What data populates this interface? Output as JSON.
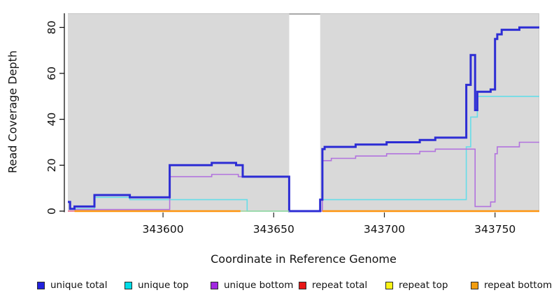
{
  "chart_data": {
    "type": "line",
    "subtype": "step-after-coverage-plot",
    "title": "",
    "xlabel": "Coordinate in Reference Genome",
    "ylabel": "Read Coverage Depth",
    "xlim": [
      343557,
      343770
    ],
    "ylim": [
      0,
      86
    ],
    "xticks": [
      343600,
      343650,
      343700,
      343750
    ],
    "yticks": [
      0,
      20,
      40,
      60,
      80
    ],
    "grid": "off",
    "legend_position": "bottom",
    "plot_bg": "#d9d9d9",
    "axis_color": "#000000",
    "gap": {
      "x_start": 343657,
      "x_end": 343671,
      "fill": "#ffffff",
      "top_line_color": "#8c8c8c",
      "meaning_visible": "white vertical band with zero coverage"
    },
    "series": [
      {
        "name": "unique top",
        "color": "#66dde8",
        "width": 1.6,
        "segments": [
          {
            "points": [
              [
                343560,
                1
              ],
              [
                343569,
                6
              ],
              [
                343585,
                5
              ],
              [
                343638,
                0
              ],
              [
                343671,
                5
              ],
              [
                343737,
                28
              ],
              [
                343739,
                41
              ],
              [
                343742,
                50
              ]
            ],
            "end": 343770
          }
        ]
      },
      {
        "name": "unique bottom",
        "color": "#b273de",
        "width": 1.6,
        "segments": [
          {
            "points": [
              [
                343560,
                0.7
              ],
              [
                343603,
                15
              ],
              [
                343622,
                16
              ],
              [
                343634,
                15
              ],
              [
                343657,
                0
              ],
              [
                343672,
                22
              ],
              [
                343676,
                23
              ],
              [
                343687,
                24
              ],
              [
                343701,
                25
              ],
              [
                343716,
                26
              ],
              [
                343723,
                27
              ],
              [
                343741,
                2
              ],
              [
                343748,
                4
              ],
              [
                343750,
                25
              ],
              [
                343751,
                28
              ],
              [
                343761,
                30
              ]
            ],
            "end": 343770
          }
        ]
      },
      {
        "name": "unique total",
        "color": "#2d2dd4",
        "width": 3,
        "segments": [
          {
            "points": [
              [
                343557,
                4
              ],
              [
                343558,
                1
              ],
              [
                343560,
                2
              ],
              [
                343569,
                7
              ],
              [
                343585,
                6
              ],
              [
                343603,
                20
              ],
              [
                343622,
                21
              ],
              [
                343633,
                20
              ],
              [
                343636,
                15
              ],
              [
                343657,
                0
              ],
              [
                343671,
                5
              ],
              [
                343672,
                27
              ],
              [
                343673,
                28
              ],
              [
                343687,
                29
              ],
              [
                343701,
                30
              ],
              [
                343716,
                31
              ],
              [
                343723,
                32
              ],
              [
                343737,
                55
              ],
              [
                343739,
                68
              ],
              [
                343741,
                44
              ],
              [
                343742,
                52
              ],
              [
                343748,
                53
              ],
              [
                343750,
                75
              ],
              [
                343751,
                77
              ],
              [
                343753,
                79
              ],
              [
                343761,
                80
              ]
            ],
            "end": 343770
          }
        ]
      },
      {
        "name": "repeat total",
        "color": "#f4728f",
        "width": 1.6,
        "segments": [
          {
            "points": [
              [
                343557,
                0
              ]
            ],
            "end": 343560
          }
        ]
      },
      {
        "name": "repeat top",
        "color": "#9cd99c",
        "width": 1.6,
        "segments": [
          {
            "points": [
              [
                343635,
                0
              ]
            ],
            "end": 343657
          }
        ]
      },
      {
        "name": "repeat bottom",
        "color": "#ff950f",
        "width": 2.6,
        "segments": [
          {
            "points": [
              [
                343560,
                0
              ]
            ],
            "end": 343635
          },
          {
            "points": [
              [
                343672,
                0
              ]
            ],
            "end": 343770
          }
        ]
      }
    ]
  },
  "axes": {
    "x_title": "Coordinate in Reference Genome",
    "y_title": "Read Coverage Depth"
  },
  "legend": {
    "items": [
      {
        "label": "unique total",
        "fill": "#2121dd"
      },
      {
        "label": "unique top",
        "fill": "#00dde8"
      },
      {
        "label": "unique bottom",
        "fill": "#a128e0"
      },
      {
        "label": "repeat total",
        "fill": "#e81717"
      },
      {
        "label": "repeat top",
        "fill": "#fbf316"
      },
      {
        "label": "repeat bottom",
        "fill": "#f29d0f"
      }
    ]
  }
}
